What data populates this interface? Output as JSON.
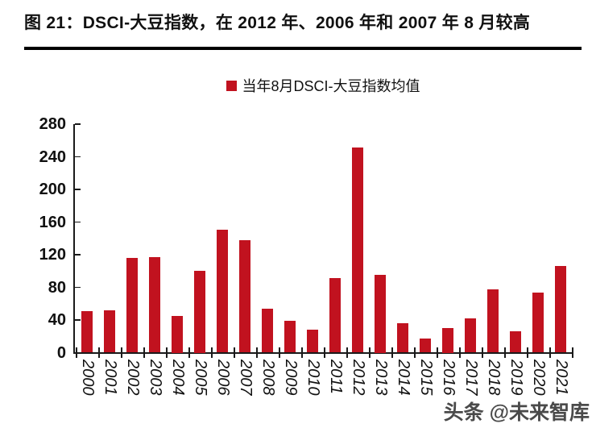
{
  "figure": {
    "title": "图 21：DSCI-大豆指数，在 2012 年、2006 年和 2007 年 8 月较高",
    "watermark": "头条 @未来智库"
  },
  "legend": {
    "label": "当年8月DSCI-大豆指数均值"
  },
  "chart_data": {
    "type": "bar",
    "title": "当年8月DSCI-大豆指数均值",
    "categories": [
      "2000",
      "2001",
      "2002",
      "2003",
      "2004",
      "2005",
      "2006",
      "2007",
      "2008",
      "2009",
      "2010",
      "2011",
      "2012",
      "2013",
      "2014",
      "2015",
      "2016",
      "2017",
      "2018",
      "2019",
      "2020",
      "2021"
    ],
    "values": [
      51,
      52,
      116,
      117,
      45,
      100,
      151,
      138,
      54,
      39,
      28,
      91,
      251,
      95,
      36,
      17,
      30,
      42,
      78,
      26,
      74,
      106
    ],
    "xlabel": "",
    "ylabel": "",
    "ylim": [
      0,
      280
    ],
    "ytick_step": 40,
    "yticks": [
      0,
      40,
      80,
      120,
      160,
      200,
      240,
      280
    ],
    "bar_color": "#C1121F",
    "axis_color": "#1a1a1a",
    "grid": false,
    "legend_position": "top-center"
  }
}
